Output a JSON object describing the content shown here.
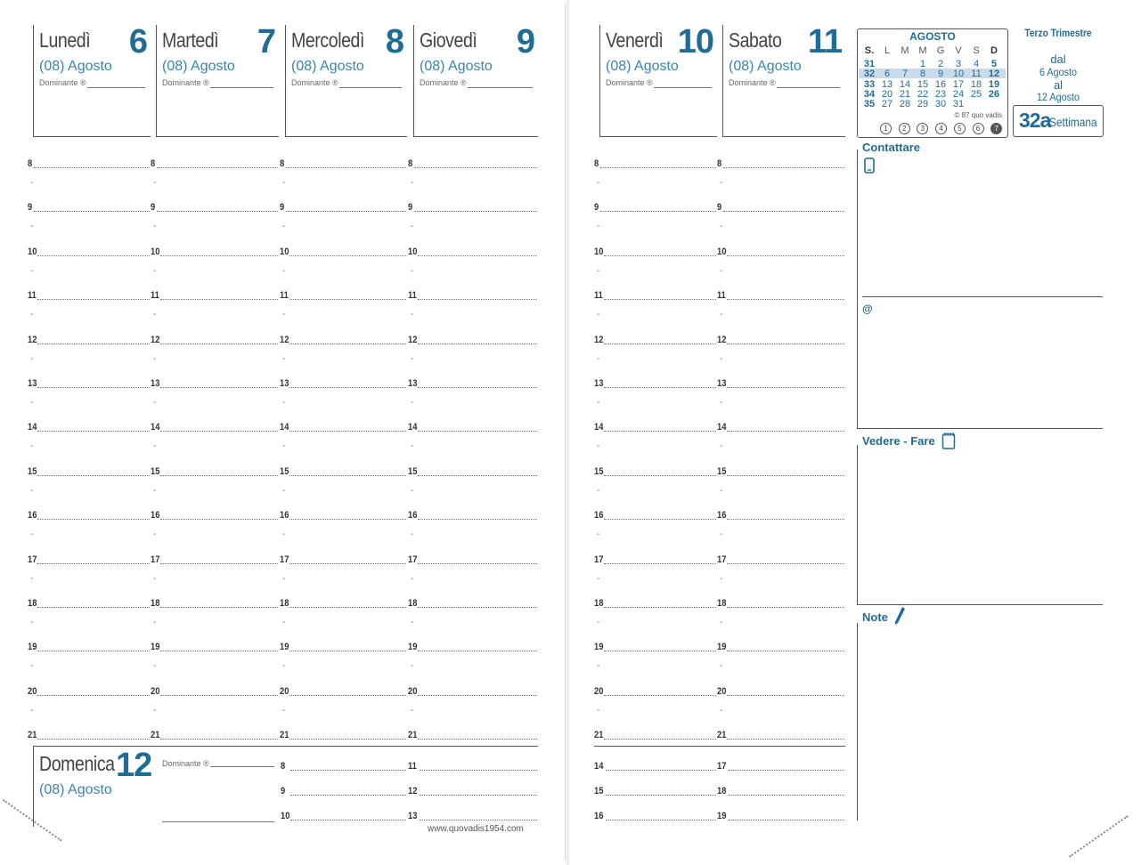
{
  "days": [
    {
      "name": "Lunedì",
      "num": "6",
      "month": "(08) Agosto",
      "dominante": "Dominante ®"
    },
    {
      "name": "Martedì",
      "num": "7",
      "month": "(08) Agosto",
      "dominante": "Dominante ®"
    },
    {
      "name": "Mercoledì",
      "num": "8",
      "month": "(08) Agosto",
      "dominante": "Dominante ®"
    },
    {
      "name": "Giovedì",
      "num": "9",
      "month": "(08) Agosto",
      "dominante": "Dominante ®"
    },
    {
      "name": "Venerdì",
      "num": "10",
      "month": "(08) Agosto",
      "dominante": "Dominante ®"
    },
    {
      "name": "Sabato",
      "num": "11",
      "month": "(08) Agosto",
      "dominante": "Dominante ®"
    }
  ],
  "hours": [
    "8",
    "9",
    "10",
    "11",
    "12",
    "13",
    "14",
    "15",
    "16",
    "17",
    "18",
    "19",
    "20",
    "21"
  ],
  "half_mark": "-",
  "sunday": {
    "name": "Domenica",
    "num": "12",
    "month": "(08) Agosto",
    "dominante": "Dominante ®",
    "col1_hours": [
      "8",
      "9",
      "10"
    ],
    "col2_hours": [
      "11",
      "12",
      "13"
    ]
  },
  "saturday_extra": {
    "col1_hours": [
      "14",
      "15",
      "16"
    ],
    "col2_hours": [
      "17",
      "18",
      "19"
    ]
  },
  "website": "www.quovadis1954.com",
  "calendar": {
    "month": "AGOSTO",
    "headers": [
      "S.",
      "L",
      "M",
      "M",
      "G",
      "V",
      "S",
      "D"
    ],
    "rows": [
      [
        "31",
        "",
        "",
        "1",
        "2",
        "3",
        "4",
        "5"
      ],
      [
        "32",
        "6",
        "7",
        "8",
        "9",
        "10",
        "11",
        "12"
      ],
      [
        "33",
        "13",
        "14",
        "15",
        "16",
        "17",
        "18",
        "19"
      ],
      [
        "34",
        "20",
        "21",
        "22",
        "23",
        "24",
        "25",
        "26"
      ],
      [
        "35",
        "27",
        "28",
        "29",
        "30",
        "31",
        "",
        ""
      ]
    ],
    "copyright": "© 87 quo vadis",
    "circles": [
      "1",
      "2",
      "3",
      "4",
      "5",
      "6",
      "7"
    ]
  },
  "trimester": "Terzo Trimestre",
  "range": {
    "dal": "dal",
    "from": "6 Agosto",
    "al": "al",
    "to": "12 Agosto"
  },
  "week": {
    "num": "32a",
    "label": "Settimana"
  },
  "sections": {
    "contattare": "Contattare",
    "vedere": "Vedere - Fare",
    "note": "Note",
    "at": "@"
  },
  "icons": {
    "phone": "phone-icon",
    "notepad": "notepad-icon",
    "pen": "pen-icon"
  },
  "colors": {
    "accent": "#1f6c96",
    "light_accent": "#3a84b0",
    "highlight": "#c9dcec"
  }
}
